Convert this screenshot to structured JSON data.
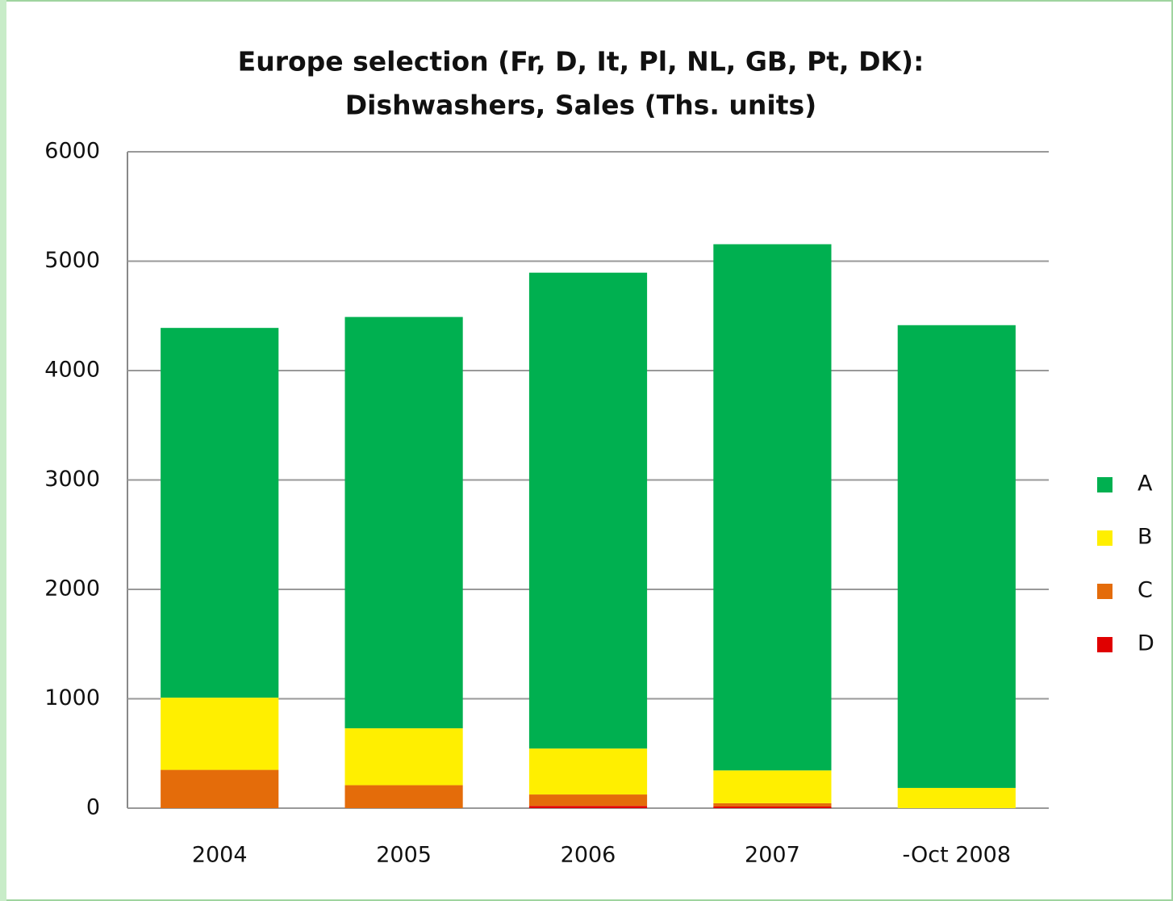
{
  "chart_data": {
    "type": "stacked_bar",
    "title": "Europe selection (Fr, D, It, Pl, NL, GB, Pt, DK):",
    "subtitle": "Dishwashers, Sales (Ths. units)",
    "categories": [
      "2004",
      "2005",
      "2006",
      "2007",
      "-Oct 2008"
    ],
    "series": [
      {
        "name": "A",
        "color": "#00b050",
        "values": [
          3380,
          3760,
          4350,
          4810,
          4230
        ]
      },
      {
        "name": "B",
        "color": "#ffef00",
        "values": [
          660,
          520,
          420,
          300,
          185
        ]
      },
      {
        "name": "C",
        "color": "#e46c0a",
        "values": [
          350,
          210,
          105,
          30,
          0
        ]
      },
      {
        "name": "D",
        "color": "#e00000",
        "values": [
          0,
          0,
          20,
          15,
          0
        ]
      }
    ],
    "ylim": [
      0,
      6000
    ],
    "yticks": [
      0,
      1000,
      2000,
      3000,
      4000,
      5000,
      6000
    ],
    "grid": true,
    "legend": "right"
  }
}
